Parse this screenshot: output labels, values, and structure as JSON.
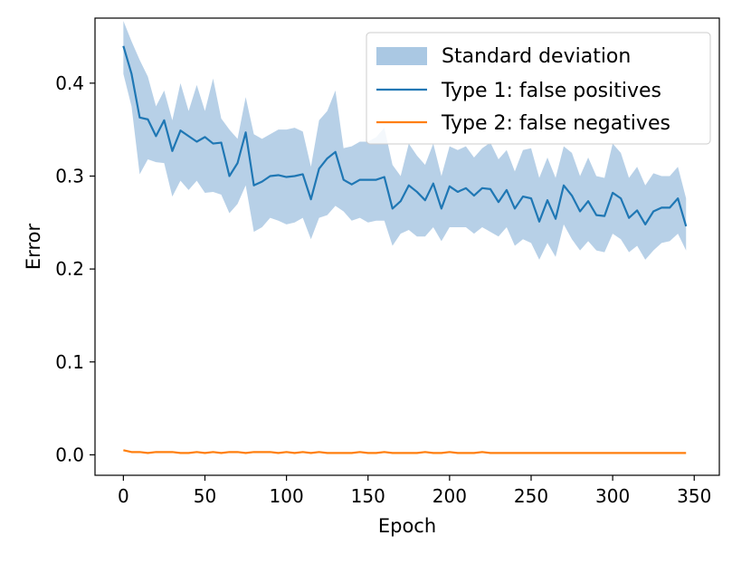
{
  "chart_data": {
    "type": "line",
    "title": "",
    "xlabel": "Epoch",
    "ylabel": "Error",
    "xlim": [
      -17.4,
      365.4
    ],
    "ylim": [
      -0.022,
      0.47
    ],
    "xticks": [
      0,
      50,
      100,
      150,
      200,
      250,
      300,
      350
    ],
    "yticks": [
      0.0,
      0.1,
      0.2,
      0.3,
      0.4
    ],
    "ytick_labels": [
      "0.0",
      "0.1",
      "0.2",
      "0.3",
      "0.4"
    ],
    "grid": false,
    "legend": "top-right",
    "colors": {
      "type1": "#1f77b4",
      "type2": "#ff7f0e",
      "band": "#aac8e3"
    },
    "x": [
      0,
      5,
      10,
      15,
      20,
      25,
      30,
      35,
      40,
      45,
      50,
      55,
      60,
      65,
      70,
      75,
      80,
      85,
      90,
      95,
      100,
      105,
      110,
      115,
      120,
      125,
      130,
      135,
      140,
      145,
      150,
      155,
      160,
      165,
      170,
      175,
      180,
      185,
      190,
      195,
      200,
      205,
      210,
      215,
      220,
      225,
      230,
      235,
      240,
      245,
      250,
      255,
      260,
      265,
      270,
      275,
      280,
      285,
      290,
      295,
      300,
      305,
      310,
      315,
      320,
      325,
      330,
      335,
      340,
      345
    ],
    "series": [
      {
        "name": "Type 1: false positives",
        "color": "#1f77b4",
        "values": [
          0.44,
          0.41,
          0.363,
          0.361,
          0.343,
          0.36,
          0.327,
          0.349,
          0.343,
          0.337,
          0.342,
          0.335,
          0.336,
          0.3,
          0.314,
          0.347,
          0.29,
          0.294,
          0.3,
          0.301,
          0.299,
          0.3,
          0.302,
          0.275,
          0.308,
          0.319,
          0.326,
          0.296,
          0.291,
          0.296,
          0.296,
          0.296,
          0.299,
          0.265,
          0.273,
          0.29,
          0.283,
          0.274,
          0.292,
          0.265,
          0.289,
          0.283,
          0.287,
          0.279,
          0.287,
          0.286,
          0.272,
          0.285,
          0.265,
          0.278,
          0.276,
          0.251,
          0.274,
          0.254,
          0.29,
          0.279,
          0.262,
          0.273,
          0.258,
          0.257,
          0.282,
          0.276,
          0.255,
          0.263,
          0.248,
          0.262,
          0.266,
          0.266,
          0.276,
          0.246
        ]
      },
      {
        "name": "Type 2: false negatives",
        "color": "#ff7f0e",
        "values": [
          0.005,
          0.003,
          0.003,
          0.002,
          0.003,
          0.003,
          0.003,
          0.002,
          0.002,
          0.003,
          0.002,
          0.003,
          0.002,
          0.003,
          0.003,
          0.002,
          0.003,
          0.003,
          0.003,
          0.002,
          0.003,
          0.002,
          0.003,
          0.002,
          0.003,
          0.002,
          0.002,
          0.002,
          0.002,
          0.003,
          0.002,
          0.002,
          0.003,
          0.002,
          0.002,
          0.002,
          0.002,
          0.003,
          0.002,
          0.002,
          0.003,
          0.002,
          0.002,
          0.002,
          0.003,
          0.002,
          0.002,
          0.002,
          0.002,
          0.002,
          0.002,
          0.002,
          0.002,
          0.002,
          0.002,
          0.002,
          0.002,
          0.002,
          0.002,
          0.002,
          0.002,
          0.002,
          0.002,
          0.002,
          0.002,
          0.002,
          0.002,
          0.002,
          0.002,
          0.002
        ]
      }
    ],
    "band": {
      "name": "Standard deviation",
      "color": "#aac8e3",
      "upper": [
        0.467,
        0.445,
        0.425,
        0.407,
        0.375,
        0.392,
        0.36,
        0.4,
        0.37,
        0.398,
        0.37,
        0.405,
        0.362,
        0.35,
        0.34,
        0.385,
        0.345,
        0.34,
        0.345,
        0.35,
        0.35,
        0.352,
        0.348,
        0.31,
        0.36,
        0.37,
        0.392,
        0.33,
        0.332,
        0.337,
        0.337,
        0.342,
        0.352,
        0.312,
        0.3,
        0.335,
        0.322,
        0.312,
        0.335,
        0.3,
        0.332,
        0.328,
        0.332,
        0.32,
        0.33,
        0.336,
        0.318,
        0.328,
        0.305,
        0.328,
        0.33,
        0.298,
        0.32,
        0.298,
        0.332,
        0.325,
        0.3,
        0.32,
        0.3,
        0.298,
        0.335,
        0.325,
        0.298,
        0.31,
        0.29,
        0.303,
        0.3,
        0.3,
        0.31,
        0.276
      ],
      "lower": [
        0.41,
        0.375,
        0.302,
        0.318,
        0.315,
        0.314,
        0.278,
        0.295,
        0.285,
        0.295,
        0.282,
        0.283,
        0.28,
        0.26,
        0.27,
        0.29,
        0.24,
        0.245,
        0.255,
        0.252,
        0.248,
        0.25,
        0.255,
        0.232,
        0.255,
        0.258,
        0.268,
        0.262,
        0.252,
        0.255,
        0.25,
        0.252,
        0.252,
        0.225,
        0.238,
        0.242,
        0.235,
        0.235,
        0.245,
        0.23,
        0.245,
        0.245,
        0.245,
        0.238,
        0.245,
        0.24,
        0.235,
        0.245,
        0.225,
        0.232,
        0.228,
        0.21,
        0.228,
        0.213,
        0.248,
        0.232,
        0.22,
        0.23,
        0.22,
        0.218,
        0.238,
        0.232,
        0.218,
        0.225,
        0.21,
        0.22,
        0.228,
        0.23,
        0.238,
        0.22
      ]
    }
  }
}
